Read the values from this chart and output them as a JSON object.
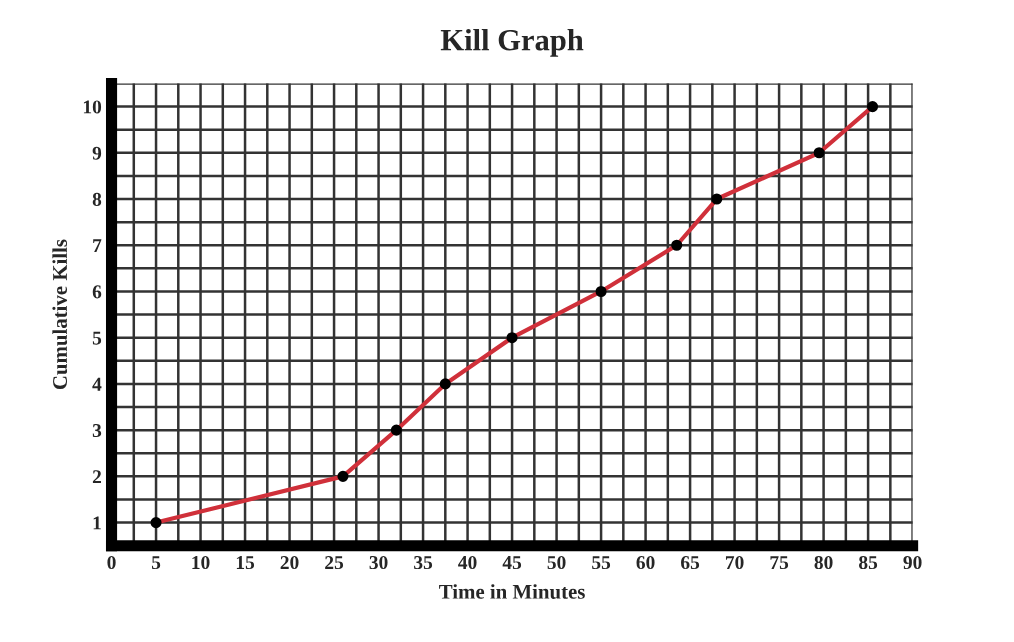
{
  "chart_data": {
    "type": "line",
    "title": "Kill Graph",
    "xlabel": "Time in Minutes",
    "ylabel": "Cumulative Kills",
    "x": [
      5,
      26,
      32,
      37.5,
      45,
      55,
      63.5,
      68,
      79.5,
      85.5
    ],
    "series": [
      {
        "color": "#d0303a",
        "values": [
          1,
          2,
          3,
          4,
          5,
          6,
          7,
          8,
          9,
          10
        ]
      }
    ],
    "marker": "circle",
    "line_style": "solid",
    "grid": true,
    "legend": false,
    "xlim": [
      0,
      90
    ],
    "ylim": [
      0.5,
      10.5
    ],
    "xticks": [
      0,
      {
        "value": 2.5,
        "label": null
      },
      5,
      {
        "value": 7.5,
        "label": null
      },
      10,
      {
        "value": 12.5,
        "label": null
      },
      15,
      {
        "value": 17.5,
        "label": null
      },
      20,
      {
        "value": 22.5,
        "label": null
      },
      25,
      {
        "value": 27.5,
        "label": null
      },
      30,
      {
        "value": 32.5,
        "label": null
      },
      35,
      {
        "value": 37.5,
        "label": null
      },
      40,
      {
        "value": 42.5,
        "label": null
      },
      45,
      {
        "value": 47.5,
        "label": null
      },
      50,
      {
        "value": 52.5,
        "label": null
      },
      55,
      {
        "value": 57.5,
        "label": null
      },
      60,
      {
        "value": 62.5,
        "label": null
      },
      65,
      {
        "value": 67.5,
        "label": null
      },
      70,
      {
        "value": 72.5,
        "label": null
      },
      75,
      {
        "value": 77.5,
        "label": null
      },
      80,
      {
        "value": 82.5,
        "label": null
      },
      85,
      {
        "value": 87.5,
        "label": null
      },
      90
    ],
    "yticks": [
      1,
      {
        "value": 1.5,
        "label": null
      },
      2,
      {
        "value": 2.5,
        "label": null
      },
      3,
      {
        "value": 3.5,
        "label": null
      },
      4,
      {
        "value": 4.5,
        "label": null
      },
      5,
      {
        "value": 5.5,
        "label": null
      },
      6,
      {
        "value": 6.5,
        "label": null
      },
      7,
      {
        "value": 7.5,
        "label": null
      },
      8,
      {
        "value": 8.5,
        "label": null
      },
      9,
      {
        "value": 9.5,
        "label": null
      },
      10,
      {
        "value": 10.5,
        "label": null
      }
    ]
  }
}
